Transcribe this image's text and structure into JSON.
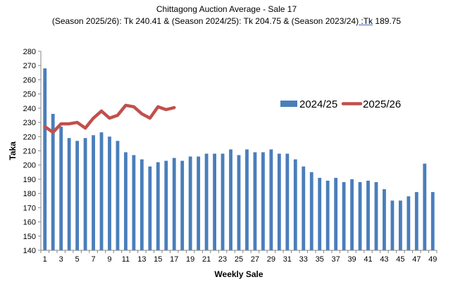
{
  "title": "Chittagong Auction Average - Sale 17",
  "subtitle_parts": [
    "(Season 2025/26): Tk 240.41 & (Season 2024/25): Tk 204.75 & (Season 2023/24)",
    " :Tk",
    " 189.75"
  ],
  "chart_data": {
    "type": "bar",
    "xlabel": "Weekly Sale",
    "ylabel": "Taka",
    "ylim": [
      140,
      280
    ],
    "yticks": [
      140,
      150,
      160,
      170,
      180,
      190,
      200,
      210,
      220,
      230,
      240,
      250,
      260,
      270,
      280
    ],
    "xtick_labels": [
      "1",
      "3",
      "5",
      "7",
      "9",
      "11",
      "13",
      "15",
      "17",
      "19",
      "21",
      "23",
      "25",
      "27",
      "29",
      "31",
      "33",
      "35",
      "37",
      "39",
      "41",
      "43",
      "45",
      "47",
      "49"
    ],
    "grid": false,
    "legend_position": "right",
    "series": [
      {
        "name": "2024/25",
        "type": "bar",
        "color": "#4a7ebb",
        "x": [
          1,
          2,
          3,
          4,
          5,
          6,
          7,
          8,
          9,
          10,
          11,
          12,
          13,
          14,
          15,
          16,
          17,
          18,
          19,
          20,
          21,
          22,
          23,
          24,
          25,
          26,
          27,
          28,
          29,
          30,
          31,
          32,
          33,
          34,
          35,
          36,
          37,
          38,
          39,
          40,
          41,
          42,
          43,
          44,
          45,
          46,
          47,
          48,
          49
        ],
        "values": [
          268,
          236,
          227,
          219,
          217,
          219,
          221,
          223,
          220,
          217,
          209,
          207,
          204,
          199,
          202,
          203,
          205,
          203,
          206,
          206,
          208,
          208,
          208,
          211,
          207,
          211,
          209,
          209,
          211,
          208,
          208,
          204,
          199,
          195,
          191,
          189,
          191,
          188,
          190,
          188,
          189,
          188,
          183,
          175,
          175,
          178,
          181,
          201,
          181
        ]
      },
      {
        "name": "2025/26",
        "type": "line",
        "color": "#c0504d",
        "x": [
          1,
          2,
          3,
          4,
          5,
          6,
          7,
          8,
          9,
          10,
          11,
          12,
          13,
          14,
          15,
          16,
          17
        ],
        "values": [
          227,
          223,
          229,
          229,
          230,
          226,
          233,
          238,
          233,
          235,
          242,
          241,
          236,
          233,
          241,
          239,
          240.41
        ]
      }
    ]
  }
}
